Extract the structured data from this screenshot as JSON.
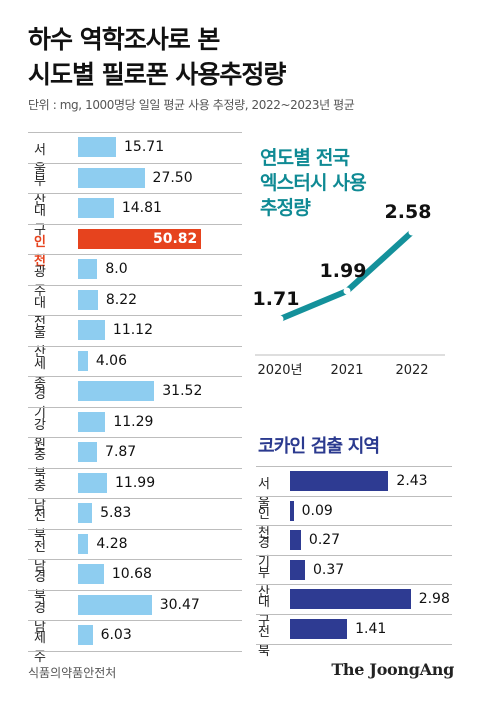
{
  "title_line1": "하수 역학조사로 본",
  "title_line2": "시도별 필로폰 사용추정량",
  "subtitle": "단위 : mg, 1000명당 일일 평균 사용 추정량, 2022~2023년 평균",
  "source": "식품의약품안전처",
  "brand": "The JoongAng",
  "colors": {
    "bar": "#8ecdf0",
    "highlight": "#e6431e",
    "trend_line": "#14919b",
    "cocaine_bar": "#2e3b92"
  },
  "chart_data": [
    {
      "type": "bar",
      "orientation": "horizontal",
      "categories": [
        "서울",
        "부산",
        "대구",
        "인천",
        "광주",
        "대전",
        "울산",
        "세종",
        "경기",
        "강원",
        "충북",
        "충남",
        "전북",
        "전남",
        "경북",
        "경남",
        "제주"
      ],
      "values": [
        15.71,
        27.5,
        14.81,
        50.82,
        8.0,
        8.22,
        11.12,
        4.06,
        31.52,
        11.29,
        7.87,
        11.99,
        5.83,
        4.28,
        10.68,
        30.47,
        6.03
      ],
      "value_labels": [
        "15.71",
        "27.50",
        "14.81",
        "50.82",
        "8.0",
        "8.22",
        "11.12",
        "4.06",
        "31.52",
        "11.29",
        "7.87",
        "11.99",
        "5.83",
        "4.28",
        "10.68",
        "30.47",
        "6.03"
      ],
      "highlight": "인천"
    },
    {
      "type": "line",
      "title_line1": "연도별 전국",
      "title_line2": "엑스터시 사용",
      "title_line3": "추정량",
      "x": [
        "2020년",
        "2021",
        "2022"
      ],
      "values": [
        1.71,
        1.99,
        2.58
      ],
      "value_labels": [
        "1.71",
        "1.99",
        "2.58"
      ]
    },
    {
      "type": "bar",
      "orientation": "horizontal",
      "title": "코카인 검출 지역",
      "categories": [
        "서울",
        "인천",
        "경기",
        "부산",
        "대구",
        "전북"
      ],
      "values": [
        2.43,
        0.09,
        0.27,
        0.37,
        2.98,
        1.41
      ],
      "value_labels": [
        "2.43",
        "0.09",
        "0.27",
        "0.37",
        "2.98",
        "1.41"
      ]
    }
  ]
}
